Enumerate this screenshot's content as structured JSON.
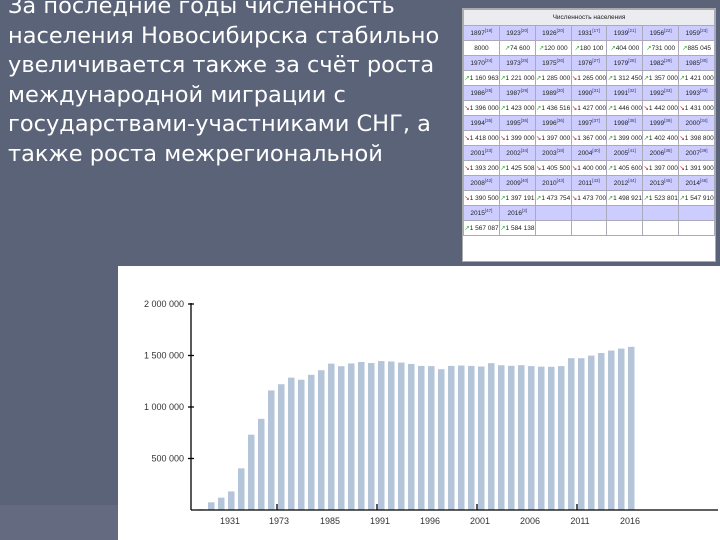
{
  "slide": {
    "text": "За последние годы численность населения Новосибирска стабильно увеличивается также за счёт роста международной миграции с государствами-участниками СНГ, а также роста межрегиональной"
  },
  "table": {
    "title": "Численность населения",
    "entries": [
      {
        "year": "1897",
        "ref": "[19]",
        "value": "8000",
        "trend": ""
      },
      {
        "year": "1923",
        "ref": "[20]",
        "value": "74 600",
        "trend": "up"
      },
      {
        "year": "1926",
        "ref": "[20]",
        "value": "120 000",
        "trend": "up"
      },
      {
        "year": "1931",
        "ref": "[17]",
        "value": "180 100",
        "trend": "up"
      },
      {
        "year": "1939",
        "ref": "[21]",
        "value": "404 000",
        "trend": "up"
      },
      {
        "year": "1956",
        "ref": "[22]",
        "value": "731 000",
        "trend": "up"
      },
      {
        "year": "1959",
        "ref": "[23]",
        "value": "885 045",
        "trend": "up"
      },
      {
        "year": "1970",
        "ref": "[24]",
        "value": "1 160 963",
        "trend": "up"
      },
      {
        "year": "1973",
        "ref": "[25]",
        "value": "1 221 000",
        "trend": "up"
      },
      {
        "year": "1975",
        "ref": "[26]",
        "value": "1 285 000",
        "trend": "up"
      },
      {
        "year": "1976",
        "ref": "[27]",
        "value": "1 265 000",
        "trend": "down"
      },
      {
        "year": "1979",
        "ref": "[28]",
        "value": "1 312 450",
        "trend": "up"
      },
      {
        "year": "1982",
        "ref": "[29]",
        "value": "1 357 000",
        "trend": "up"
      },
      {
        "year": "1985",
        "ref": "[30]",
        "value": "1 421 000",
        "trend": "up"
      },
      {
        "year": "1986",
        "ref": "[25]",
        "value": "1 396 000",
        "trend": "down"
      },
      {
        "year": "1987",
        "ref": "[29]",
        "value": "1 423 000",
        "trend": "up"
      },
      {
        "year": "1989",
        "ref": "[30]",
        "value": "1 436 516",
        "trend": "up"
      },
      {
        "year": "1990",
        "ref": "[31]",
        "value": "1 427 000",
        "trend": "down"
      },
      {
        "year": "1991",
        "ref": "[32]",
        "value": "1 446 000",
        "trend": "up"
      },
      {
        "year": "1992",
        "ref": "[33]",
        "value": "1 442 000",
        "trend": "down"
      },
      {
        "year": "1993",
        "ref": "[33]",
        "value": "1 431 000",
        "trend": "down"
      },
      {
        "year": "1994",
        "ref": "[35]",
        "value": "1 418 000",
        "trend": "down"
      },
      {
        "year": "1995",
        "ref": "[36]",
        "value": "1 399 000",
        "trend": "down"
      },
      {
        "year": "1996",
        "ref": "[36]",
        "value": "1 397 000",
        "trend": "down"
      },
      {
        "year": "1997",
        "ref": "[37]",
        "value": "1 367 000",
        "trend": "down"
      },
      {
        "year": "1998",
        "ref": "[38]",
        "value": "1 399 000",
        "trend": "up"
      },
      {
        "year": "1999",
        "ref": "[39]",
        "value": "1 402 400",
        "trend": "up"
      },
      {
        "year": "2000",
        "ref": "[34]",
        "value": "1 398 800",
        "trend": "down"
      },
      {
        "year": "2001",
        "ref": "[23]",
        "value": "1 393 200",
        "trend": "down"
      },
      {
        "year": "2002",
        "ref": "[34]",
        "value": "1 425 508",
        "trend": "up"
      },
      {
        "year": "2003",
        "ref": "[18]",
        "value": "1 405 500",
        "trend": "down"
      },
      {
        "year": "2004",
        "ref": "[40]",
        "value": "1 400 000",
        "trend": "down"
      },
      {
        "year": "2005",
        "ref": "[41]",
        "value": "1 405 600",
        "trend": "up"
      },
      {
        "year": "2006",
        "ref": "[38]",
        "value": "1 397 000",
        "trend": "down"
      },
      {
        "year": "2007",
        "ref": "[39]",
        "value": "1 391 900",
        "trend": "down"
      },
      {
        "year": "2008",
        "ref": "[42]",
        "value": "1 390 500",
        "trend": "down"
      },
      {
        "year": "2009",
        "ref": "[40]",
        "value": "1 397 191",
        "trend": "up"
      },
      {
        "year": "2010",
        "ref": "[43]",
        "value": "1 473 754",
        "trend": "up"
      },
      {
        "year": "2011",
        "ref": "[43]",
        "value": "1 473 700",
        "trend": "down"
      },
      {
        "year": "2012",
        "ref": "[44]",
        "value": "1 498 921",
        "trend": "up"
      },
      {
        "year": "2013",
        "ref": "[45]",
        "value": "1 523 801",
        "trend": "up"
      },
      {
        "year": "2014",
        "ref": "[46]",
        "value": "1 547 910",
        "trend": "up"
      },
      {
        "year": "2015",
        "ref": "[47]",
        "value": "1 567 087",
        "trend": "up"
      },
      {
        "year": "2016",
        "ref": "[3]",
        "value": "1 584 138",
        "trend": "up"
      }
    ],
    "colors": {
      "up": "#33aa33",
      "down": "#cc2222",
      "header_row": "#ccccff"
    }
  },
  "chart_data": {
    "type": "bar",
    "categories": [
      "1897",
      "1923",
      "1926",
      "1931",
      "1939",
      "1956",
      "1959",
      "1970",
      "1973",
      "1975",
      "1976",
      "1979",
      "1982",
      "1985",
      "1986",
      "1987",
      "1989",
      "1990",
      "1991",
      "1992",
      "1993",
      "1994",
      "1995",
      "1996",
      "1997",
      "1998",
      "1999",
      "2000",
      "2001",
      "2002",
      "2003",
      "2004",
      "2005",
      "2006",
      "2007",
      "2008",
      "2009",
      "2010",
      "2011",
      "2012",
      "2013",
      "2014",
      "2015",
      "2016"
    ],
    "values": [
      8000,
      74600,
      120000,
      180100,
      404000,
      731000,
      885045,
      1160963,
      1221000,
      1285000,
      1265000,
      1312450,
      1357000,
      1421000,
      1396000,
      1423000,
      1436516,
      1427000,
      1446000,
      1442000,
      1431000,
      1418000,
      1399000,
      1397000,
      1367000,
      1399000,
      1402400,
      1398800,
      1393200,
      1425508,
      1405500,
      1400000,
      1405600,
      1397000,
      1391900,
      1390500,
      1397191,
      1473754,
      1473700,
      1498921,
      1523801,
      1547910,
      1567087,
      1584138
    ],
    "ylim": [
      0,
      2000000
    ],
    "yticks": [
      "500 000",
      "1 000 000",
      "1 500 000",
      "2 000 000"
    ],
    "ytick_values": [
      500000,
      1000000,
      1500000,
      2000000
    ],
    "xtick_labels": [
      "1931",
      "1973",
      "1985",
      "1991",
      "1996",
      "2001",
      "2006",
      "2011",
      "2016"
    ],
    "bar_color": "#b4c4d9",
    "grid": false
  }
}
